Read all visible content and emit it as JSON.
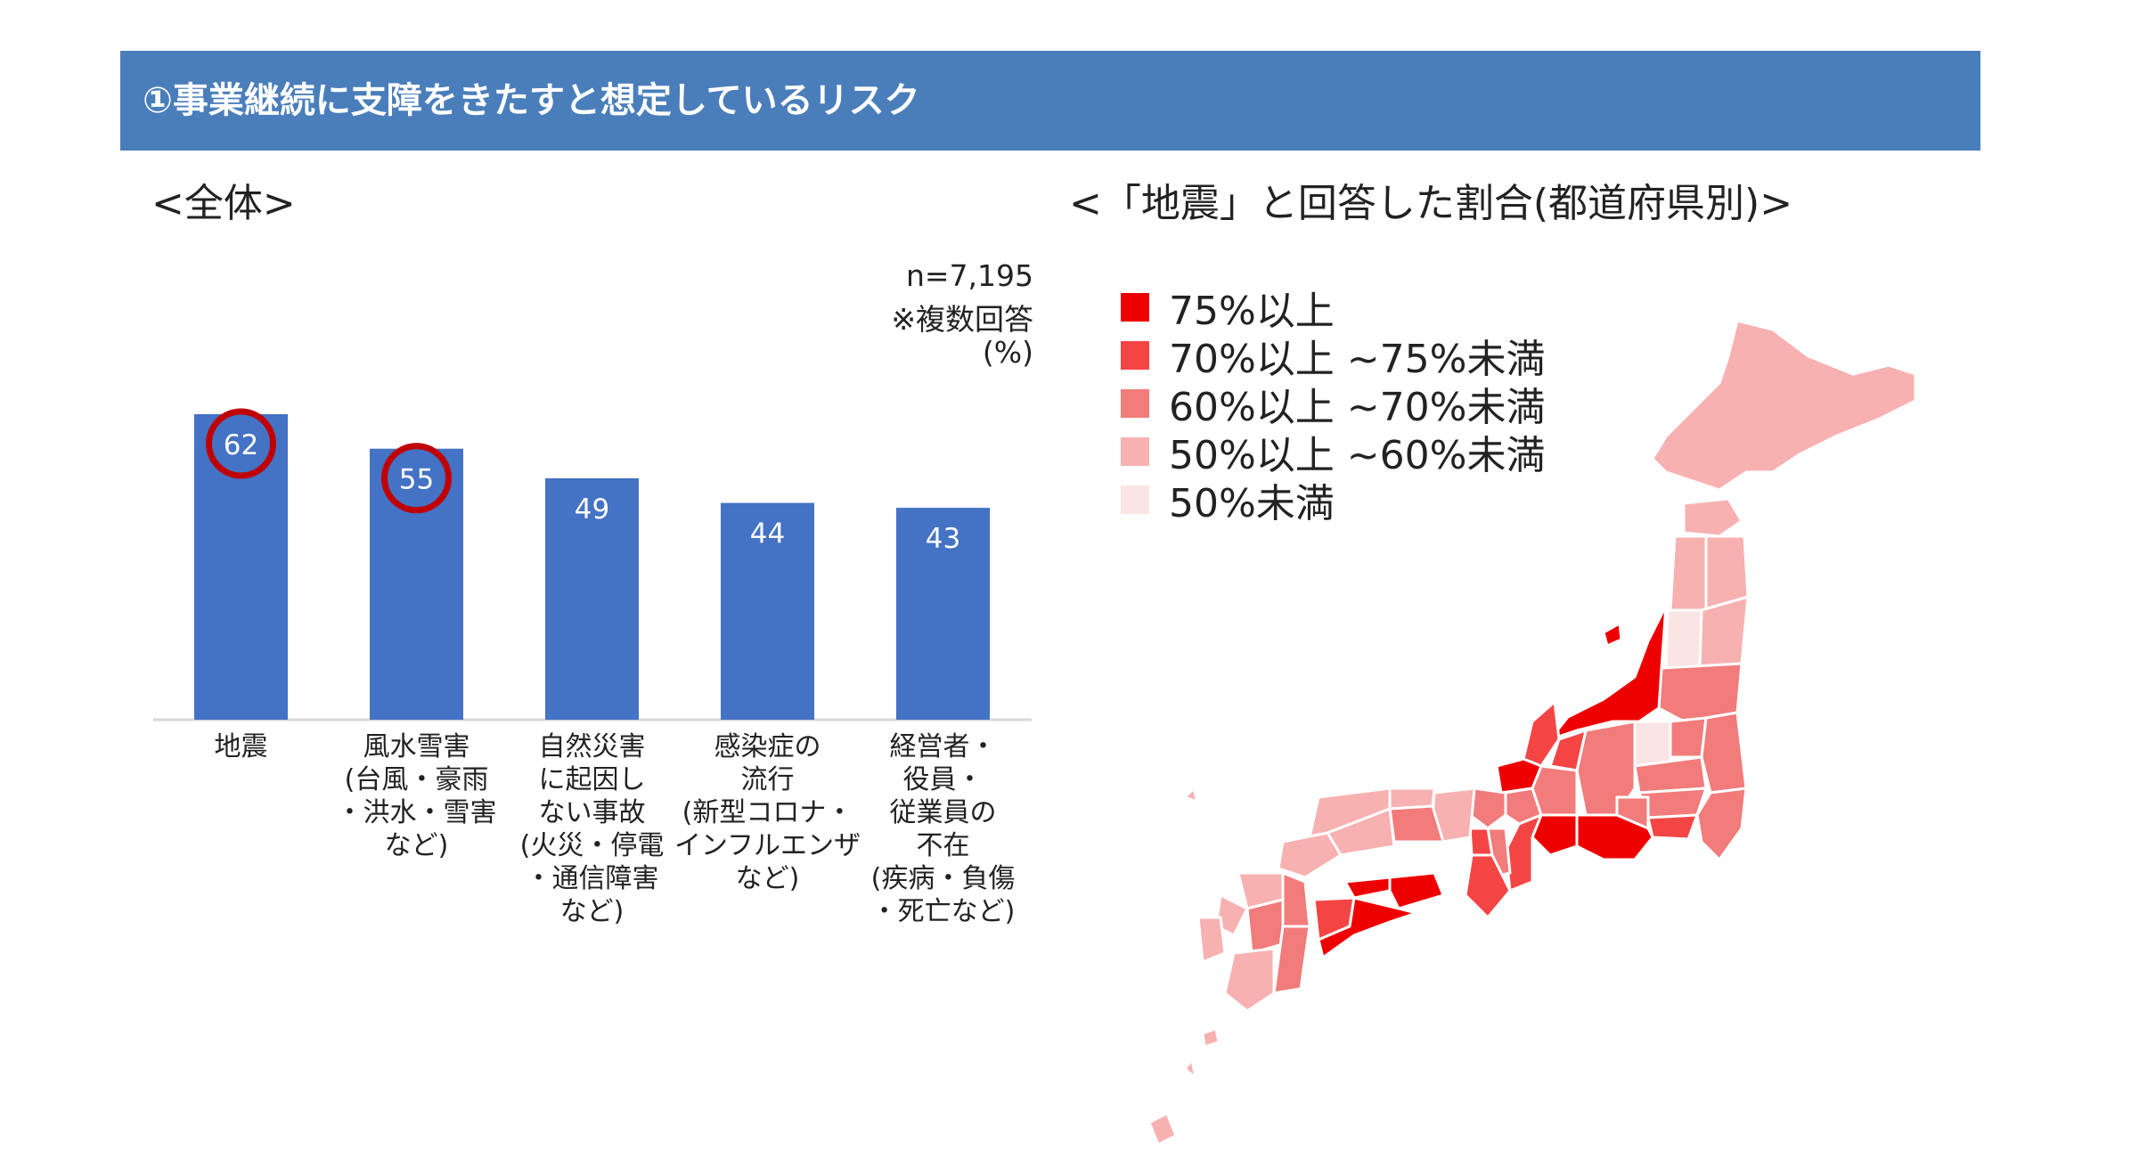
{
  "header": {
    "title": "①事業継続に支障をきたすと想定しているリスク"
  },
  "left_section": {
    "title": "<全体>"
  },
  "right_section": {
    "title": "<「地震」と回答した割合(都道府県別)>"
  },
  "notes": {
    "n": "n=7,195",
    "multiple": "※複数回答",
    "unit": "(%)"
  },
  "chart_data": {
    "type": "bar",
    "categories": [
      [
        "地震"
      ],
      [
        "風水雪害",
        "(台風・豪雨",
        "・洪水・雪害",
        "など)"
      ],
      [
        "自然災害",
        "に起因し",
        "ない事故",
        "(火災・停電",
        "・通信障害",
        "など)"
      ],
      [
        "感染症の",
        "流行",
        "(新型コロナ・",
        "インフルエンザ",
        "など)"
      ],
      [
        "経営者・",
        "役員・",
        "従業員の",
        "不在",
        "(疾病・負傷",
        "・死亡など)"
      ]
    ],
    "values": [
      62,
      55,
      49,
      44,
      43
    ],
    "highlighted": [
      0,
      1
    ],
    "ylim": [
      0,
      70
    ],
    "bar_color": "#4472c4",
    "highlight_color": "#c00000"
  },
  "legend": [
    {
      "label": "75%以上",
      "color": "#ee0000"
    },
    {
      "label": "70%以上 ~75%未満",
      "color": "#f44545"
    },
    {
      "label": "60%以上 ~70%未満",
      "color": "#f27b7b"
    },
    {
      "label": "50%以上 ~60%未満",
      "color": "#f7b1b1"
    },
    {
      "label": "50%未満",
      "color": "#fbe4e4"
    }
  ],
  "map": {
    "icon": "japan-prefecture-map"
  }
}
